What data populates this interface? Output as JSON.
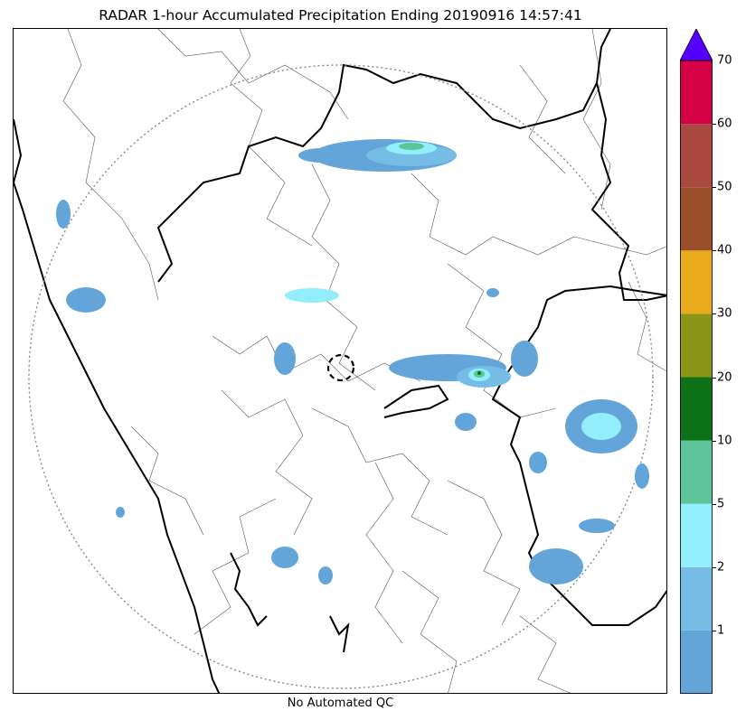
{
  "title": "RADAR 1-hour Accumulated Precipitation Ending 20190916 14:57:41",
  "bottom_note": "No Automated QC",
  "colorbar": {
    "levels": [
      {
        "label": "",
        "color": "#63a5d8"
      },
      {
        "label": "1",
        "color": "#76bde6"
      },
      {
        "label": "2",
        "color": "#93eefc"
      },
      {
        "label": "5",
        "color": "#5ec49a"
      },
      {
        "label": "10",
        "color": "#0d7118"
      },
      {
        "label": "20",
        "color": "#8b9617"
      },
      {
        "label": "30",
        "color": "#e9aa1b"
      },
      {
        "label": "40",
        "color": "#9b4e2a"
      },
      {
        "label": "50",
        "color": "#a9493f"
      },
      {
        "label": "60",
        "color": "#d50146"
      }
    ],
    "top_label": "70",
    "extend_color": "#5500ff"
  }
}
